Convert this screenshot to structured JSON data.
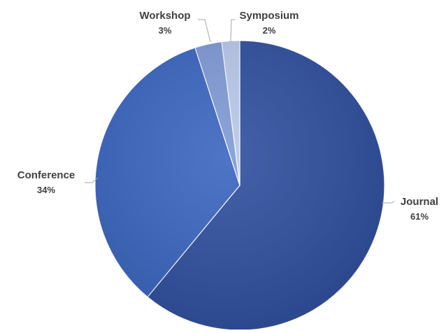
{
  "chart_data": {
    "type": "pie",
    "title": "",
    "legend": "none",
    "slices": [
      {
        "label": "Journal",
        "value": 61,
        "value_label": "61%",
        "color": "#2f4f9f"
      },
      {
        "label": "Conference",
        "value": 34,
        "value_label": "34%",
        "color": "#3a65c0"
      },
      {
        "label": "Workshop",
        "value": 3,
        "value_label": "3%",
        "color": "#7f9ad6"
      },
      {
        "label": "Symposium",
        "value": 2,
        "value_label": "2%",
        "color": "#b9c8ea"
      }
    ]
  }
}
